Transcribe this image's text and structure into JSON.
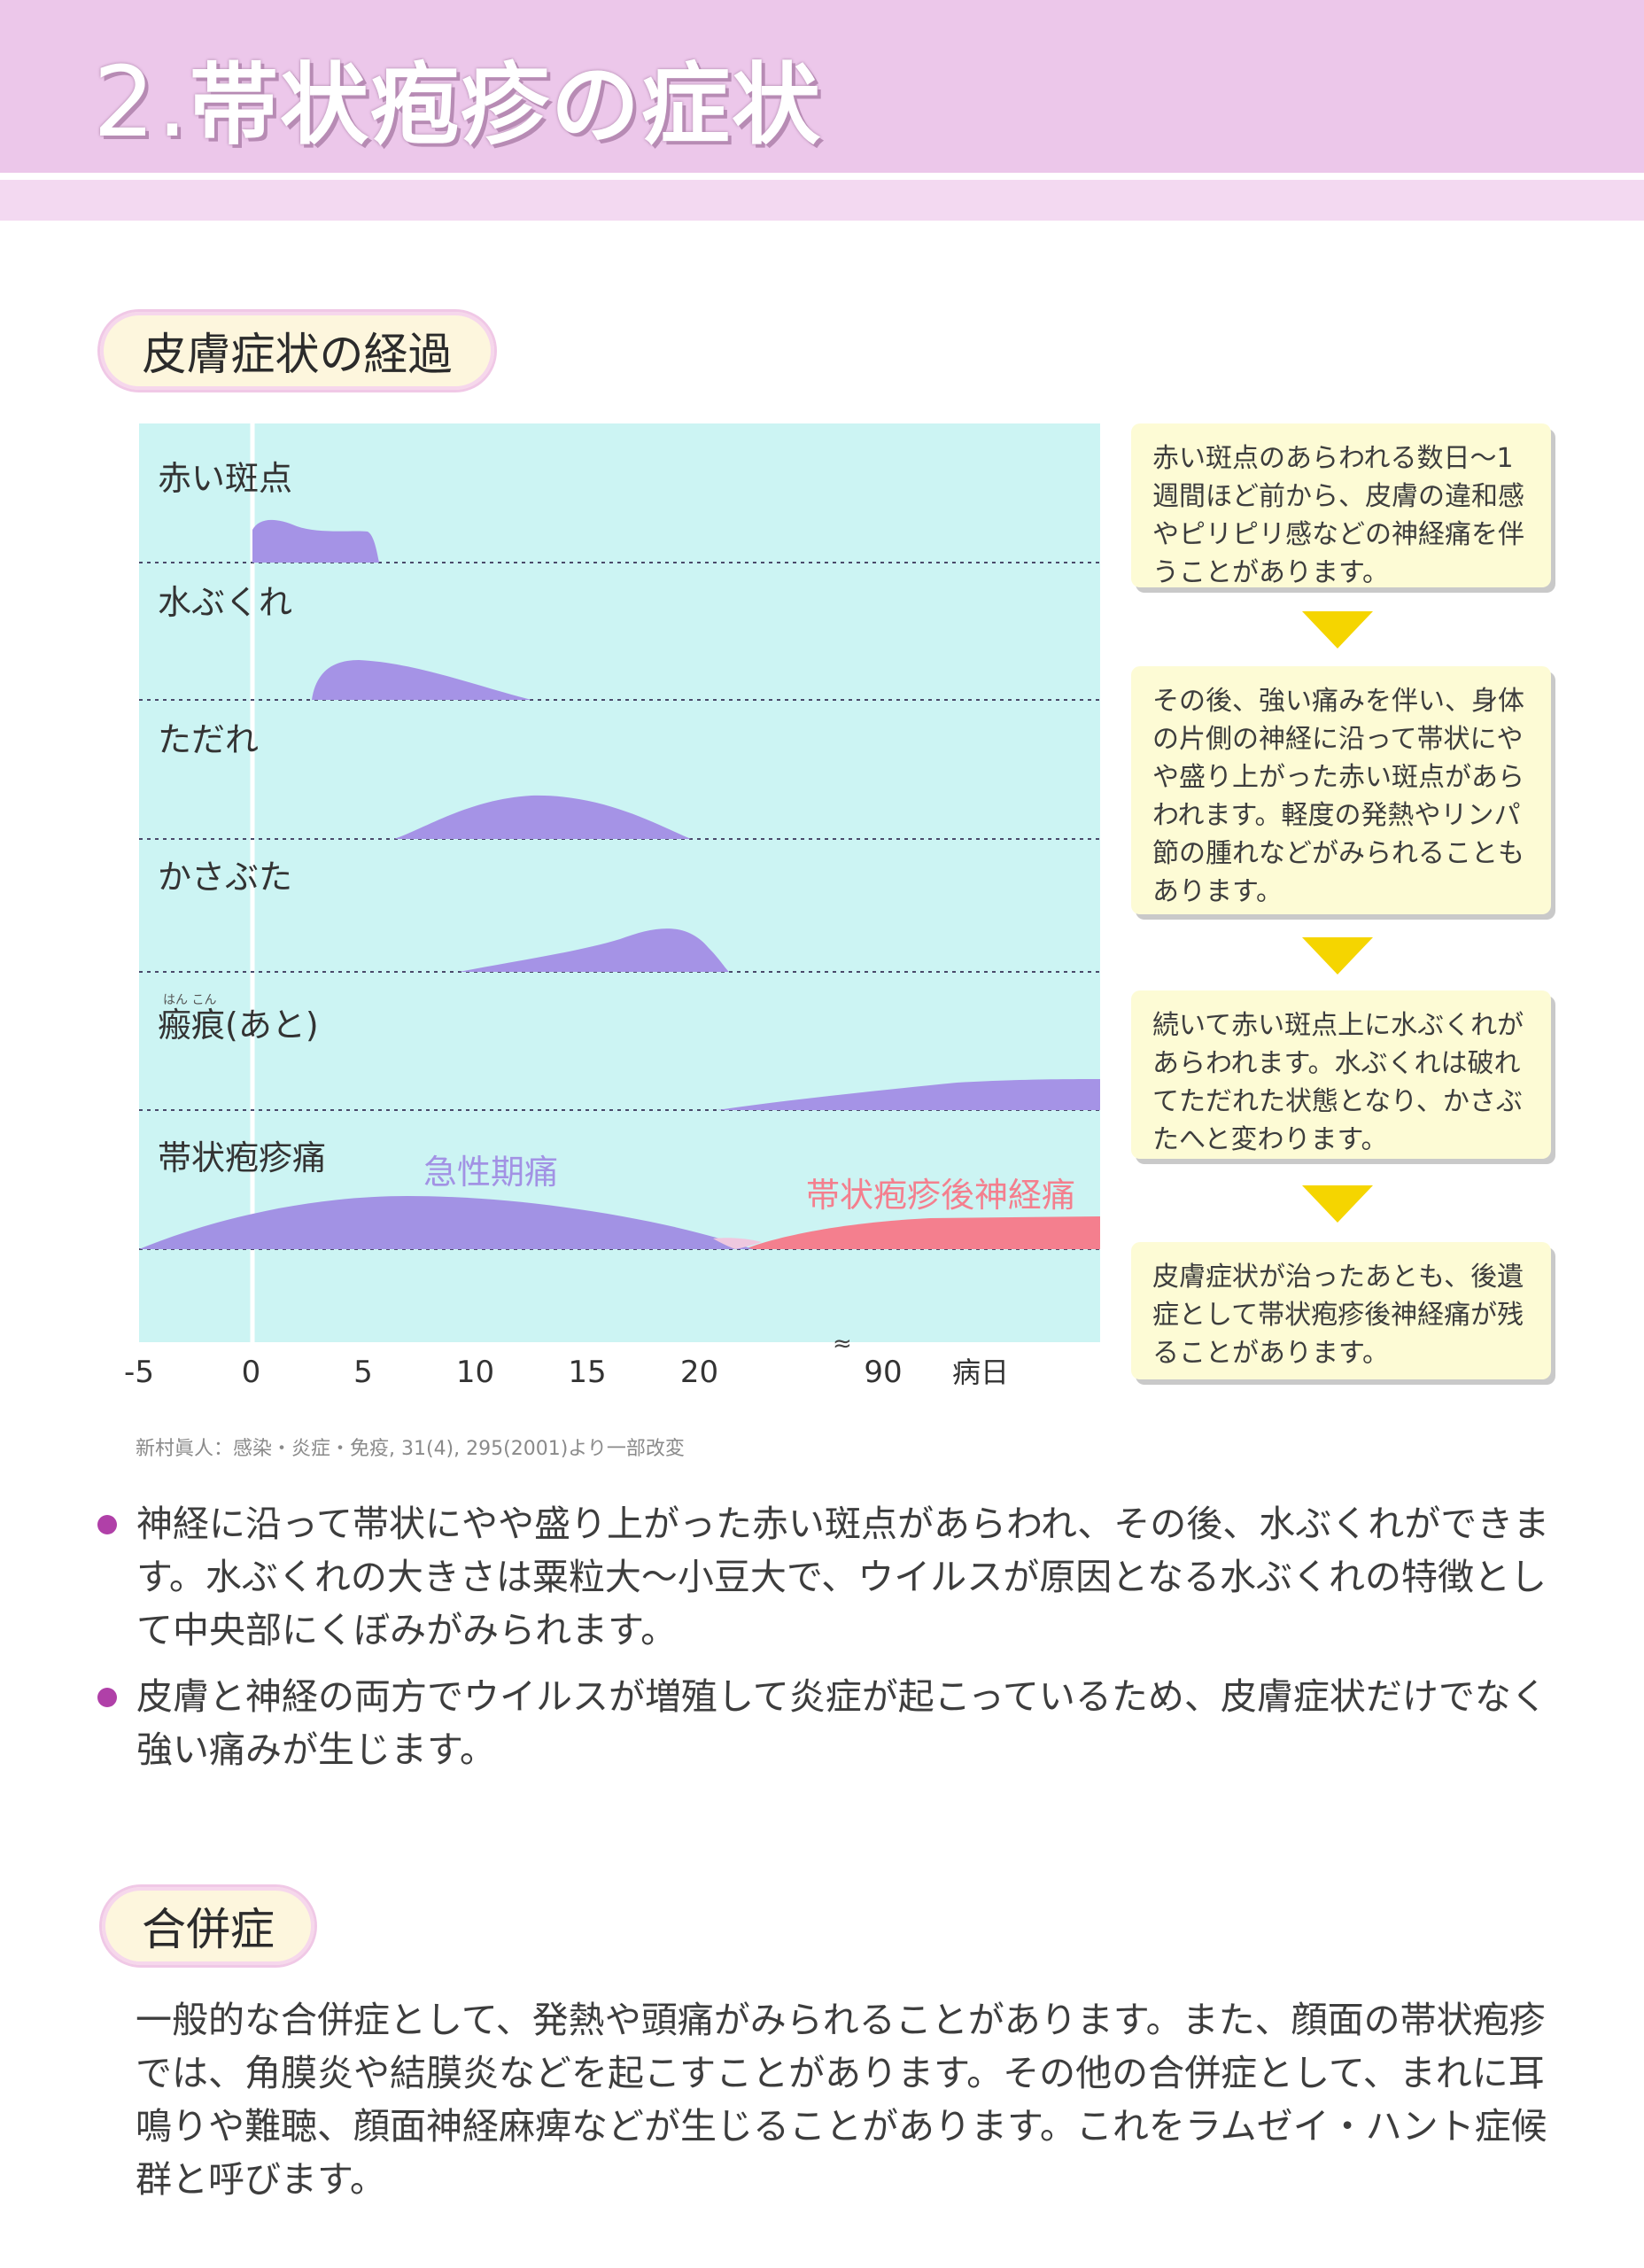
{
  "header": {
    "number": "2.",
    "title": "帯状疱疹の症状"
  },
  "section1": {
    "heading": "皮膚症状の経過"
  },
  "chart_data": {
    "type": "area",
    "xlabel": "病日",
    "x_ticks": [
      "-5",
      "0",
      "5",
      "10",
      "15",
      "20",
      "90"
    ],
    "axis_break": "≈",
    "rows": [
      {
        "label": "赤い斑点"
      },
      {
        "label": "水ぶくれ"
      },
      {
        "label": "ただれ"
      },
      {
        "label": "かさぶた"
      },
      {
        "label": "瘢痕(あと)",
        "ruby": "はん こん"
      },
      {
        "label": "帯状疱疹痛"
      }
    ],
    "series": [
      {
        "name": "急性期痛",
        "color": "#a292e4"
      },
      {
        "name": "帯状疱疹後神経痛",
        "color": "#f47f8e"
      }
    ],
    "colors": {
      "background": "#ccf4f3",
      "area": "#a593e6"
    }
  },
  "callouts": [
    "赤い斑点のあらわれる数日～1週間ほど前から、皮膚の違和感やピリピリ感などの神経痛を伴うことがあります。",
    "その後、強い痛みを伴い、身体の片側の神経に沿って帯状にやや盛り上がった赤い斑点があらわれます。軽度の発熱やリンパ節の腫れなどがみられることもあります。",
    "続いて赤い斑点上に水ぶくれがあらわれます。水ぶくれは破れてただれた状態となり、かさぶたへと変わります。",
    "皮膚症状が治ったあとも、後遺症として帯状疱疹後神経痛が残ることがあります。"
  ],
  "source": "新村眞人：感染・炎症・免疫, 31(4), 295(2001)より一部改変",
  "bullets": [
    "神経に沿って帯状にやや盛り上がった赤い斑点があらわれ、その後、水ぶくれができます。水ぶくれの大きさは粟粒大～小豆大で、ウイルスが原因となる水ぶくれの特徴として中央部にくぼみがみられます。",
    "皮膚と神経の両方でウイルスが増殖して炎症が起こっているため、皮膚症状だけでなく強い痛みが生じます。"
  ],
  "section2": {
    "heading": "合併症",
    "paragraph": "一般的な合併症として、発熱や頭痛がみられることがあります。また、顔面の帯状疱疹では、角膜炎や結膜炎などを起こすことがあります。その他の合併症として、まれに耳鳴りや難聴、顔面神経麻痺などが生じることがあります。これをラムゼイ・ハント症候群と呼びます。"
  }
}
